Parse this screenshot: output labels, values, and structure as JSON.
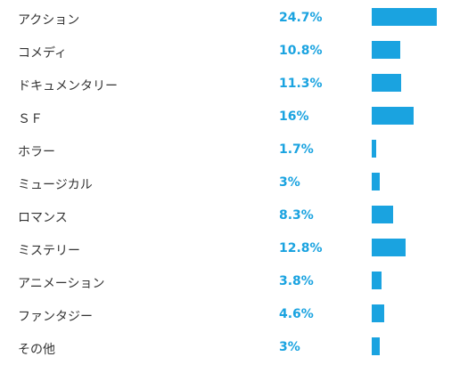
{
  "colors": {
    "accent": "#1aa3e0",
    "label_text": "#333333"
  },
  "results": [
    {
      "label": "アクション",
      "percent_label": "24.7%",
      "percent": 24.7
    },
    {
      "label": "コメディ",
      "percent_label": "10.8%",
      "percent": 10.8
    },
    {
      "label": "ドキュメンタリー",
      "percent_label": "11.3%",
      "percent": 11.3
    },
    {
      "label": "ＳＦ",
      "percent_label": "16%",
      "percent": 16
    },
    {
      "label": "ホラー",
      "percent_label": "1.7%",
      "percent": 1.7
    },
    {
      "label": "ミュージカル",
      "percent_label": "3%",
      "percent": 3
    },
    {
      "label": "ロマンス",
      "percent_label": "8.3%",
      "percent": 8.3
    },
    {
      "label": "ミステリー",
      "percent_label": "12.8%",
      "percent": 12.8
    },
    {
      "label": "アニメーション",
      "percent_label": "3.8%",
      "percent": 3.8
    },
    {
      "label": "ファンタジー",
      "percent_label": "4.6%",
      "percent": 4.6
    },
    {
      "label": "その他",
      "percent_label": "3%",
      "percent": 3
    }
  ]
}
